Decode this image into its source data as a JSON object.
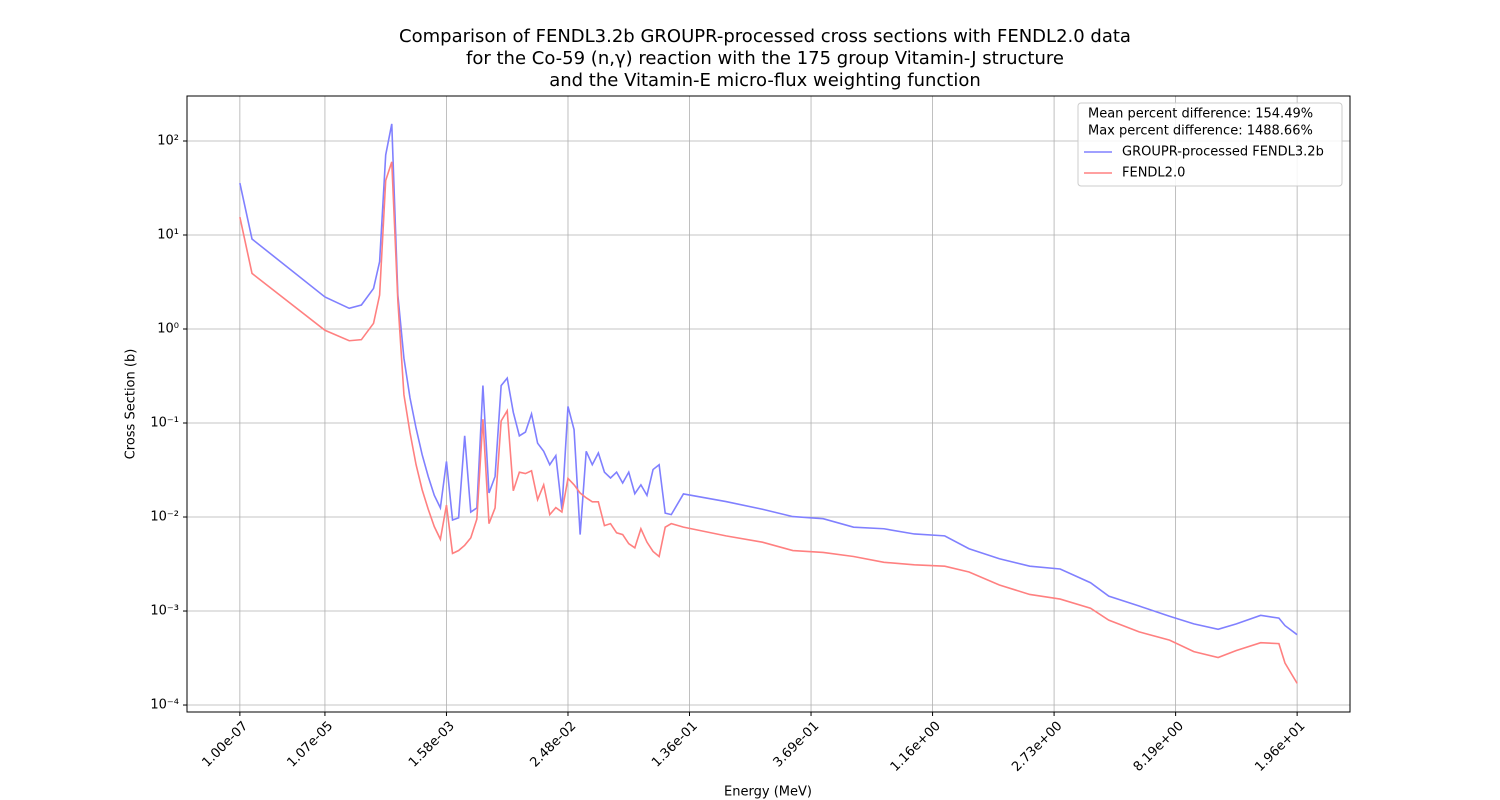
{
  "chart_data": {
    "type": "line",
    "title": [
      "Comparison of FENDL3.2b GROUPR-processed cross sections with FENDL2.0 data",
      "for the Co-59 (n,γ) reaction with the 175 group Vitamin-J structure",
      "and the Vitamin-E micro-flux weighting function"
    ],
    "x_label": "Energy (MeV)",
    "y_label": "Cross Section (b)",
    "annotations": [
      "Mean percent difference: 154.49%",
      "Max percent difference: 1488.66%"
    ],
    "x": [
      0,
      2,
      14,
      18,
      20,
      22,
      23,
      24,
      25,
      26,
      27,
      28,
      29,
      30,
      31,
      32,
      33,
      34,
      35,
      36,
      37,
      38,
      39,
      40,
      41,
      42,
      43,
      44,
      45,
      46,
      47,
      48,
      49,
      50,
      51,
      52,
      53,
      54,
      55,
      56,
      57,
      58,
      59,
      60,
      61,
      62,
      63,
      64,
      65,
      66,
      67,
      68,
      69,
      70,
      71,
      73,
      80,
      86,
      91,
      96,
      101,
      106,
      111,
      116,
      120,
      125,
      130,
      135,
      140,
      143,
      148,
      153,
      157,
      161,
      164,
      168,
      171,
      172,
      174
    ],
    "series": [
      {
        "name": "GROUPR-processed FENDL3.2b",
        "color": "#8080ff",
        "values": [
          35.7,
          9.06,
          2.19,
          1.66,
          1.8,
          2.7,
          5.2,
          71,
          152,
          2.3,
          0.49,
          0.185,
          0.088,
          0.046,
          0.027,
          0.017,
          0.0125,
          0.039,
          0.0093,
          0.0098,
          0.073,
          0.0113,
          0.0125,
          0.25,
          0.018,
          0.027,
          0.25,
          0.3,
          0.13,
          0.073,
          0.08,
          0.125,
          0.061,
          0.05,
          0.036,
          0.045,
          0.012,
          0.15,
          0.085,
          0.0065,
          0.05,
          0.036,
          0.048,
          0.03,
          0.026,
          0.03,
          0.023,
          0.03,
          0.0177,
          0.022,
          0.017,
          0.032,
          0.036,
          0.011,
          0.0106,
          0.0176,
          0.0146,
          0.0121,
          0.0101,
          0.0096,
          0.0078,
          0.0075,
          0.0066,
          0.0063,
          0.0046,
          0.0036,
          0.003,
          0.0028,
          0.002,
          0.00144,
          0.00113,
          0.00088,
          0.00073,
          0.00064,
          0.00073,
          0.0009,
          0.00084,
          0.0007,
          0.00056
        ]
      },
      {
        "name": "FENDL2.0",
        "color": "#ff8080",
        "values": [
          15.5,
          3.9,
          0.97,
          0.75,
          0.77,
          1.15,
          2.3,
          38,
          60,
          2.0,
          0.2,
          0.079,
          0.036,
          0.0195,
          0.0121,
          0.0079,
          0.0058,
          0.0134,
          0.0041,
          0.0044,
          0.005,
          0.006,
          0.0095,
          0.11,
          0.0085,
          0.0125,
          0.105,
          0.135,
          0.019,
          0.03,
          0.029,
          0.031,
          0.0153,
          0.022,
          0.0106,
          0.0126,
          0.0113,
          0.0257,
          0.022,
          0.018,
          0.016,
          0.0145,
          0.0145,
          0.0081,
          0.0085,
          0.0068,
          0.0065,
          0.0052,
          0.0047,
          0.0075,
          0.0054,
          0.0043,
          0.0038,
          0.0078,
          0.0085,
          0.0078,
          0.0063,
          0.0054,
          0.0044,
          0.0042,
          0.0038,
          0.0033,
          0.0031,
          0.003,
          0.0026,
          0.00189,
          0.0015,
          0.00134,
          0.00107,
          0.0008,
          0.0006,
          0.00049,
          0.00037,
          0.00032,
          0.00038,
          0.00046,
          0.00045,
          0.00028,
          0.00017
        ]
      }
    ],
    "xlim": [
      -8.7,
      182.7
    ],
    "xticks": [
      {
        "value": 0,
        "label": "1.00e-07"
      },
      {
        "value": 14,
        "label": "1.07e-05"
      },
      {
        "value": 34,
        "label": "1.58e-03"
      },
      {
        "value": 54,
        "label": "2.48e-02"
      },
      {
        "value": 74,
        "label": "1.36e-01"
      },
      {
        "value": 94,
        "label": "3.69e-01"
      },
      {
        "value": 114,
        "label": "1.16e+00"
      },
      {
        "value": 134,
        "label": "2.73e+00"
      },
      {
        "value": 154,
        "label": "8.19e+00"
      },
      {
        "value": 174,
        "label": "1.96e+01"
      }
    ],
    "ylim": [
      8.43e-05,
      301
    ],
    "yscale": "log",
    "yticks": [
      {
        "value": 0.0001,
        "label": "10⁻⁴"
      },
      {
        "value": 0.001,
        "label": "10⁻³"
      },
      {
        "value": 0.01,
        "label": "10⁻²"
      },
      {
        "value": 0.1,
        "label": "10⁻¹"
      },
      {
        "value": 1,
        "label": "10⁰"
      },
      {
        "value": 10,
        "label": "10¹"
      },
      {
        "value": 100,
        "label": "10²"
      }
    ],
    "grid": true,
    "legend": "upper right"
  }
}
